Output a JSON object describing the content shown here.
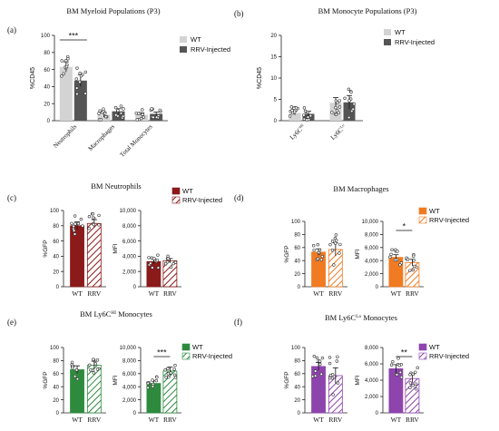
{
  "chart_data": [
    {
      "id": "a",
      "panel_label": "(a)",
      "type": "bar",
      "title": "BM Myeloid Populations (P3)",
      "ylabel": "%CD45",
      "categories": [
        "Neutrophils",
        "Macrophages",
        "Total Monocytes"
      ],
      "ylim": [
        0,
        100
      ],
      "yticks": [
        "0",
        "20",
        "40",
        "60",
        "80",
        "100"
      ],
      "series": [
        {
          "name": "WT",
          "values": [
            63,
            7,
            7
          ],
          "errors": [
            6,
            3,
            2
          ],
          "color": "#d3d3d3"
        },
        {
          "name": "RRV-Injected",
          "values": [
            47,
            11,
            8
          ],
          "errors": [
            7,
            3,
            2
          ],
          "color": "#555555"
        }
      ],
      "significance": [
        {
          "group": 0,
          "label": "***"
        }
      ],
      "legend": "right"
    },
    {
      "id": "b",
      "panel_label": "(b)",
      "type": "bar",
      "title": "BM Monocyte Populations (P3)",
      "ylabel": "%CD45",
      "categories": [
        "Ly6C^HI",
        "Ly6C^Lo"
      ],
      "ylim": [
        0,
        20
      ],
      "yticks": [
        "0",
        "5",
        "10",
        "15",
        "20"
      ],
      "series": [
        {
          "name": "WT",
          "values": [
            1.8,
            4.2
          ],
          "errors": [
            0.5,
            1.2
          ],
          "color": "#d3d3d3"
        },
        {
          "name": "RRV-Injected",
          "values": [
            1.6,
            4.3
          ],
          "errors": [
            0.6,
            1.6
          ],
          "color": "#555555"
        }
      ],
      "legend": "top-right"
    },
    {
      "id": "c",
      "panel_label": "(c)",
      "type": "bar",
      "title": "BM Neutrophils",
      "color": "#8b1a1a",
      "legend_labels": [
        "WT",
        "RRV-Injected"
      ],
      "subplots": [
        {
          "ylabel": "%GFP",
          "categories": [
            "WT",
            "RRV"
          ],
          "ylim": [
            0,
            100
          ],
          "yticks": [
            "0",
            "20",
            "40",
            "60",
            "80",
            "100"
          ],
          "values": [
            80,
            83
          ],
          "errors": [
            5,
            5
          ]
        },
        {
          "ylabel": "MFI",
          "categories": [
            "WT",
            "RRV"
          ],
          "ylim": [
            0,
            10000
          ],
          "yticks": [
            "0",
            "2,000",
            "4,000",
            "6,000",
            "8,000",
            "10,000"
          ],
          "values": [
            3300,
            3400
          ],
          "errors": [
            300,
            300
          ]
        }
      ]
    },
    {
      "id": "d",
      "panel_label": "(d)",
      "type": "bar",
      "title": "BM Macrophages",
      "color": "#f07b22",
      "legend_labels": [
        "WT",
        "RRV-Injected"
      ],
      "subplots": [
        {
          "ylabel": "%GFP",
          "categories": [
            "WT",
            "RRV"
          ],
          "ylim": [
            0,
            100
          ],
          "yticks": [
            "0",
            "20",
            "40",
            "60",
            "80",
            "100"
          ],
          "values": [
            53,
            57
          ],
          "errors": [
            5,
            10
          ]
        },
        {
          "ylabel": "MFI",
          "categories": [
            "WT",
            "RRV"
          ],
          "ylim": [
            0,
            10000
          ],
          "yticks": [
            "0",
            "2,000",
            "4,000",
            "6,000",
            "8,000",
            "10,000"
          ],
          "values": [
            4500,
            3700
          ],
          "errors": [
            400,
            500
          ],
          "significance": "*"
        }
      ]
    },
    {
      "id": "e",
      "panel_label": "(e)",
      "type": "bar",
      "title": "BM Ly6C^HI Monocytes",
      "color": "#2e8b3e",
      "legend_labels": [
        "WT",
        "RRV-Injected"
      ],
      "subplots": [
        {
          "ylabel": "%GFP",
          "categories": [
            "WT",
            "RRV"
          ],
          "ylim": [
            0,
            100
          ],
          "yticks": [
            "0",
            "20",
            "40",
            "60",
            "80",
            "100"
          ],
          "values": [
            66,
            73
          ],
          "errors": [
            6,
            6
          ]
        },
        {
          "ylabel": "MFI",
          "categories": [
            "WT",
            "RRV"
          ],
          "ylim": [
            0,
            10000
          ],
          "yticks": [
            "0",
            "2,000",
            "4,000",
            "6,000",
            "8,000",
            "10,000"
          ],
          "values": [
            4500,
            6400
          ],
          "errors": [
            400,
            600
          ],
          "significance": "***"
        }
      ]
    },
    {
      "id": "f",
      "panel_label": "(f)",
      "type": "bar",
      "title": "BM Ly6C^Lo Monocytes",
      "color": "#8e44ad",
      "legend_labels": [
        "WT",
        "RRV-Injected"
      ],
      "subplots": [
        {
          "ylabel": "%GFP",
          "categories": [
            "WT",
            "RRV"
          ],
          "ylim": [
            0,
            100
          ],
          "yticks": [
            "0",
            "20",
            "40",
            "60",
            "80",
            "100"
          ],
          "values": [
            71,
            57
          ],
          "errors": [
            6,
            12
          ]
        },
        {
          "ylabel": "MFI",
          "categories": [
            "WT",
            "RRV"
          ],
          "ylim": [
            0,
            8000
          ],
          "yticks": [
            "0",
            "2,000",
            "4,000",
            "6,000",
            "8,000"
          ],
          "values": [
            5400,
            4200
          ],
          "errors": [
            500,
            500
          ],
          "significance": "**"
        }
      ]
    }
  ]
}
